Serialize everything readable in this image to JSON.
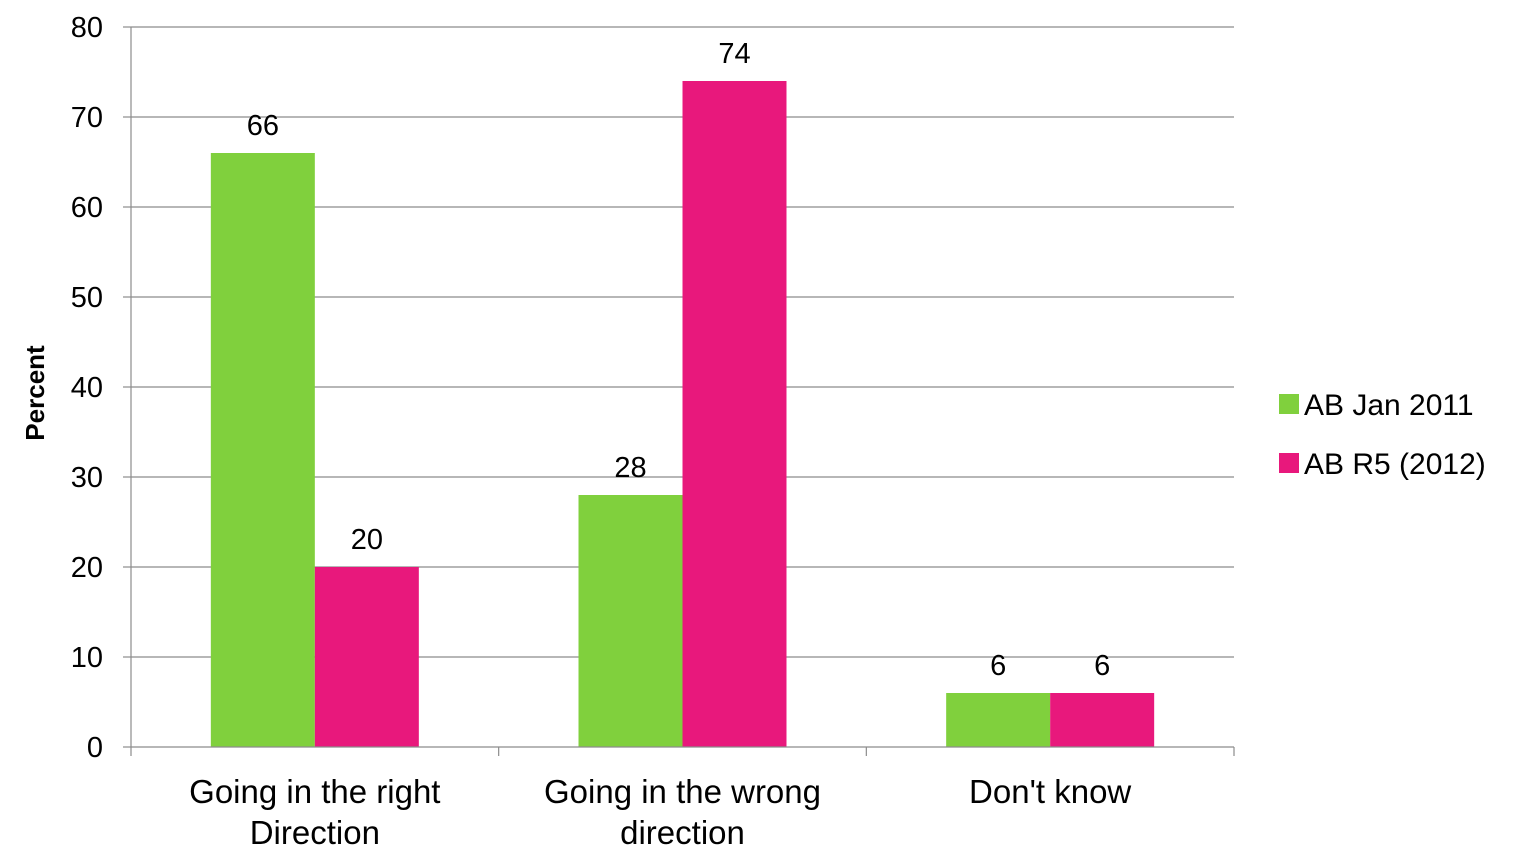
{
  "chart_data": {
    "type": "bar",
    "title": "",
    "xlabel": "",
    "ylabel": "Percent",
    "ylim": [
      0,
      80
    ],
    "yticks": [
      0,
      10,
      20,
      30,
      40,
      50,
      60,
      70,
      80
    ],
    "grid": true,
    "legend_position": "right",
    "categories": [
      [
        "Going in the right",
        "Direction"
      ],
      [
        "Going in the wrong",
        "direction"
      ],
      [
        "Don't know"
      ]
    ],
    "series": [
      {
        "name": "AB Jan 2011",
        "color": "#80d03d",
        "values": [
          66,
          28,
          6
        ]
      },
      {
        "name": "AB R5 (2012)",
        "color": "#e8187c",
        "values": [
          20,
          74,
          6
        ]
      }
    ]
  }
}
